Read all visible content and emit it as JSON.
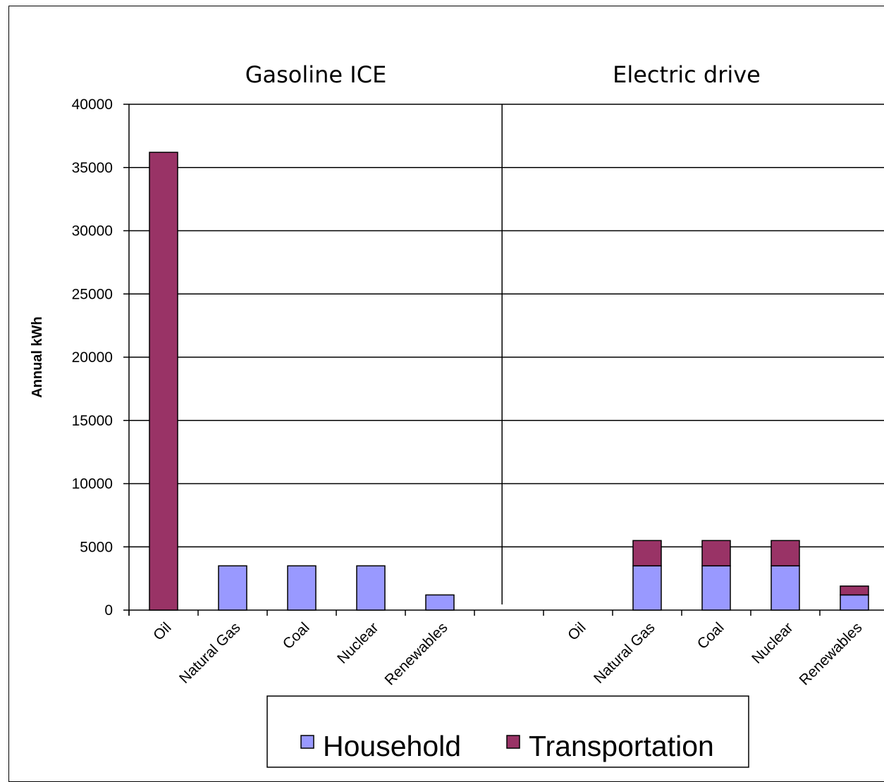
{
  "chart_data": {
    "type": "bar",
    "stacked": true,
    "ylabel": "Annual kWh",
    "ylim": [
      0,
      40000
    ],
    "yticks": [
      0,
      5000,
      10000,
      15000,
      20000,
      25000,
      30000,
      35000,
      40000
    ],
    "grid": true,
    "legend_position": "bottom",
    "groups": [
      {
        "title": "Gasoline ICE",
        "categories": [
          "Oil",
          "Natural Gas",
          "Coal",
          "Nuclear",
          "Renewables"
        ],
        "series": [
          {
            "name": "Household",
            "values": [
              0,
              3500,
              3500,
              3500,
              1200
            ]
          },
          {
            "name": "Transportation",
            "values": [
              36200,
              0,
              0,
              0,
              0
            ]
          }
        ]
      },
      {
        "title": "Electric drive",
        "categories": [
          "Oil",
          "Natural Gas",
          "Coal",
          "Nuclear",
          "Renewables"
        ],
        "series": [
          {
            "name": "Household",
            "values": [
              0,
              3500,
              3500,
              3500,
              1200
            ]
          },
          {
            "name": "Transportation",
            "values": [
              0,
              2000,
              2000,
              2000,
              700
            ]
          }
        ]
      }
    ],
    "legend": [
      "Household",
      "Transportation"
    ],
    "colors": {
      "Household": "#9999ff",
      "Transportation": "#993366"
    }
  }
}
